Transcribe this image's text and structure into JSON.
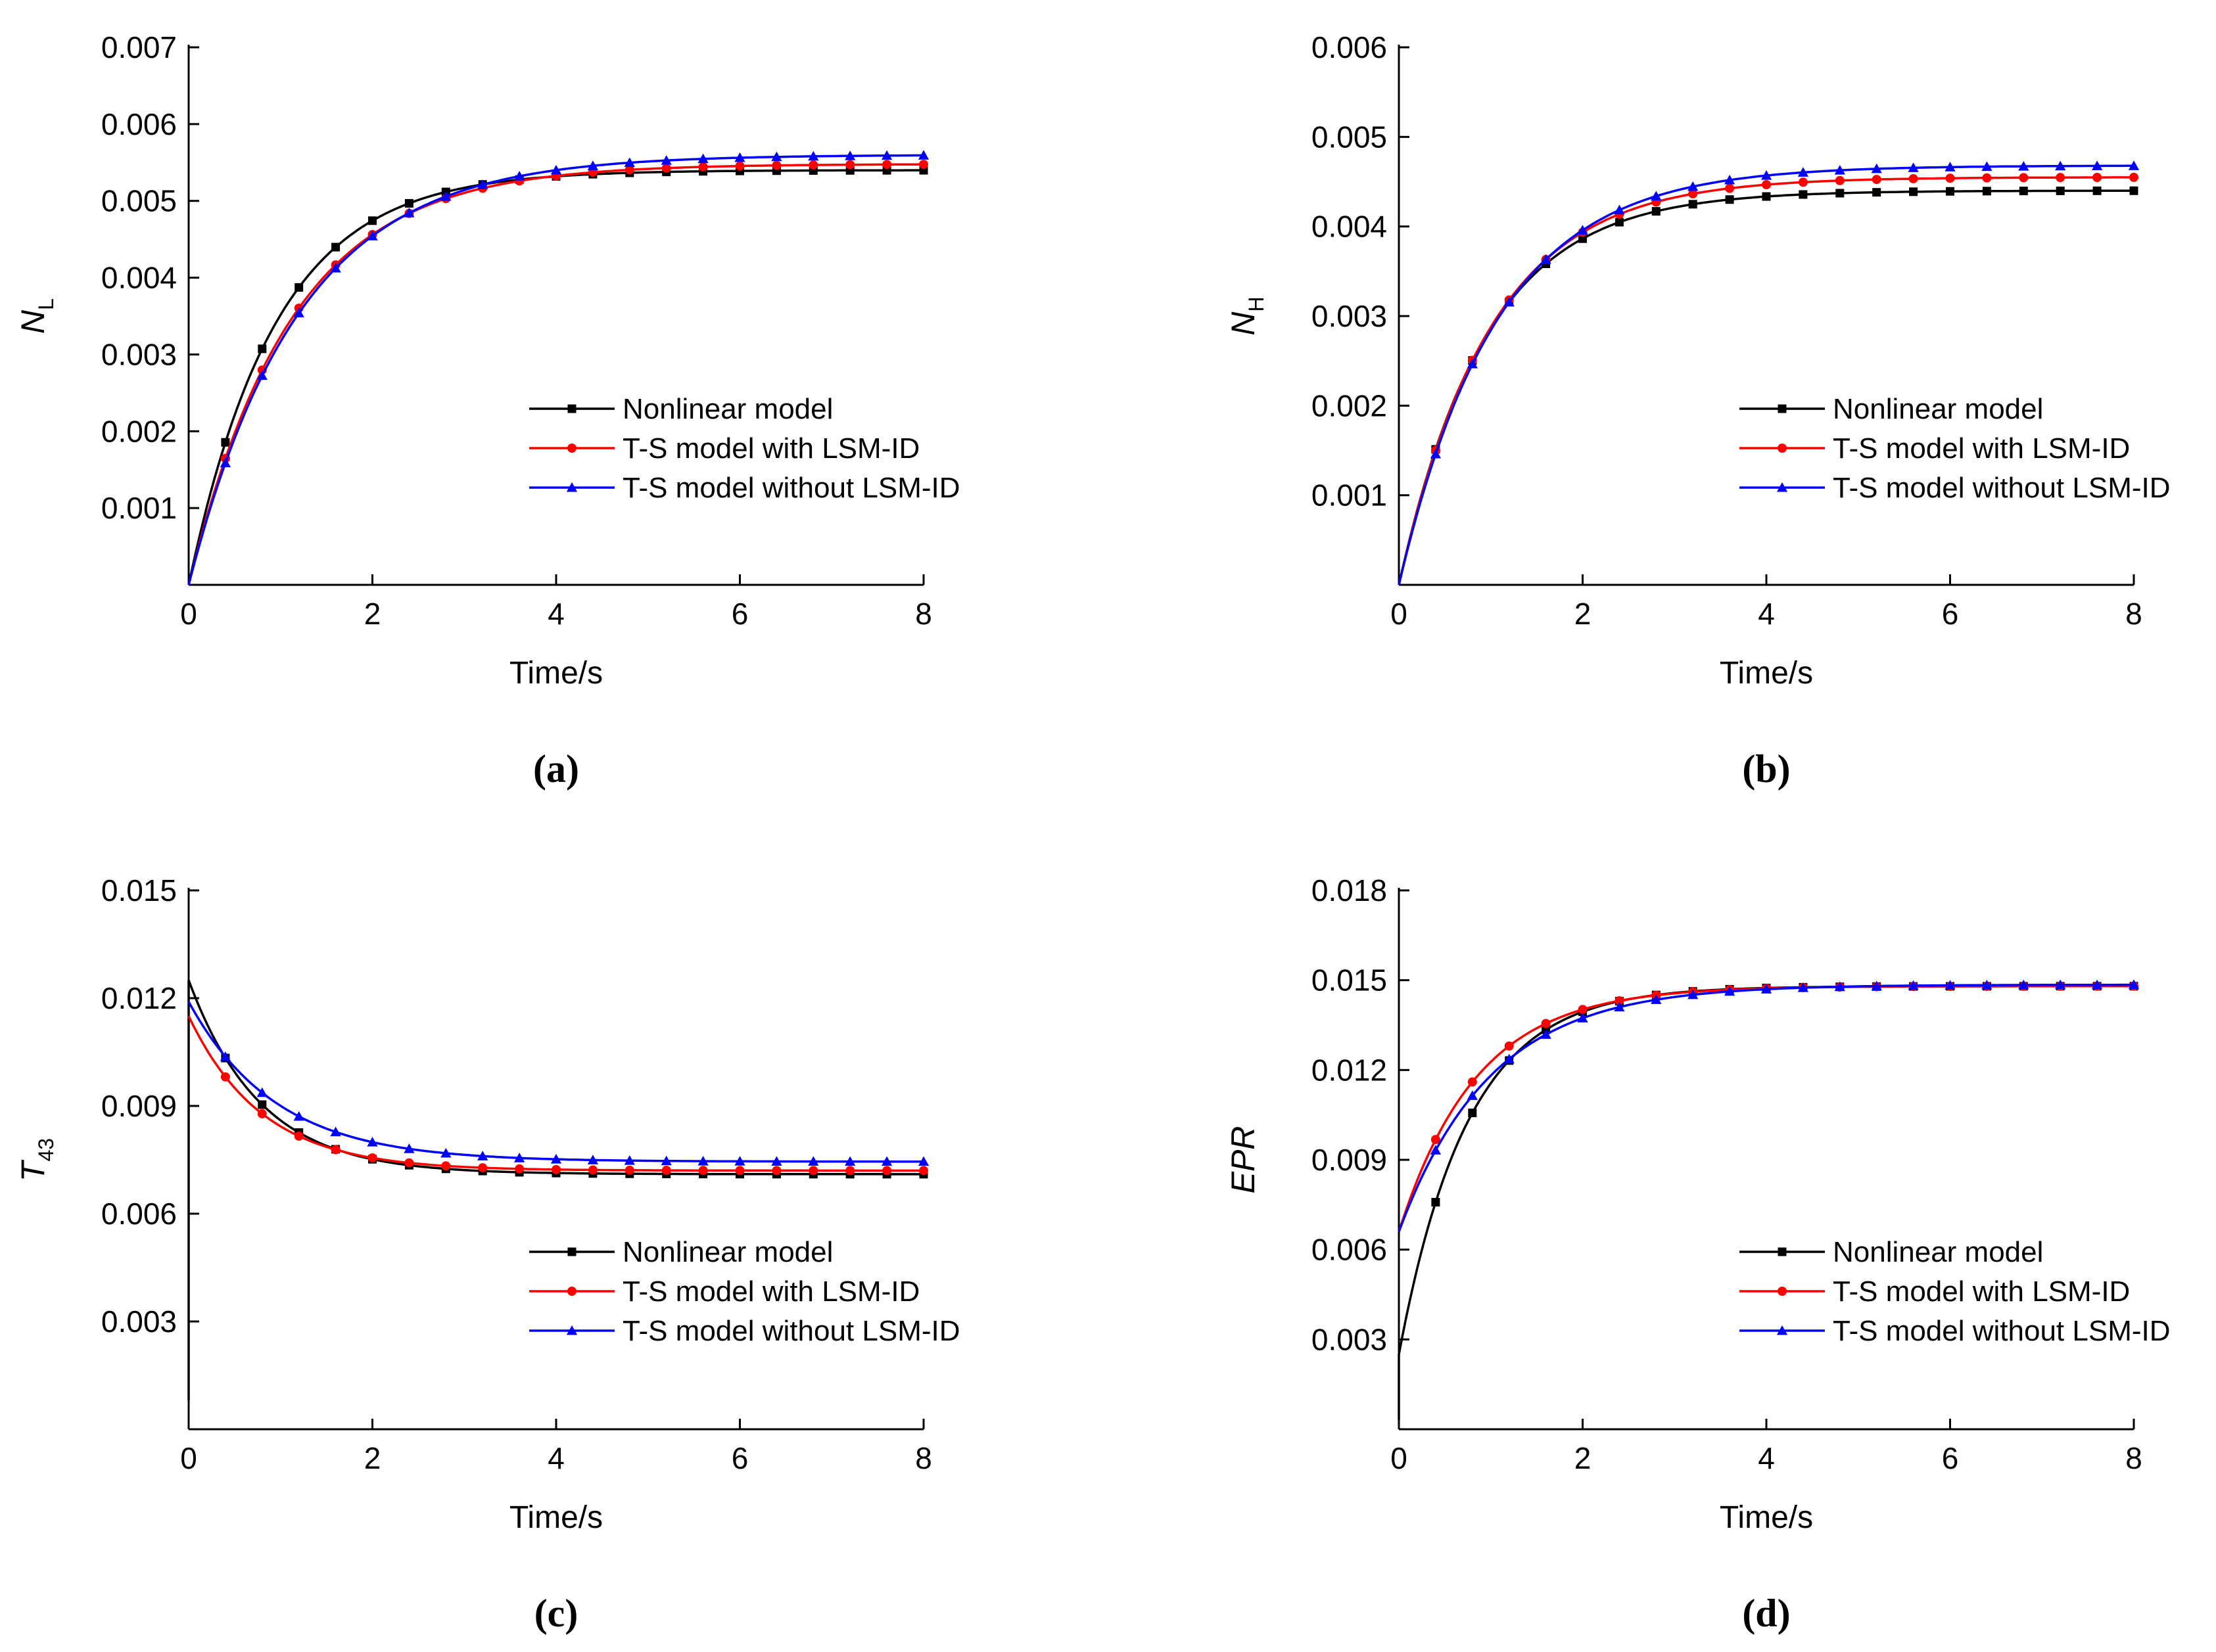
{
  "colors": {
    "nonlinear": "#000000",
    "with_lsm": "#ff0000",
    "without_lsm": "#0000ff"
  },
  "chart_data": [
    {
      "id": "a",
      "type": "line",
      "panel_label": "(a)",
      "ylabel_main": "N",
      "ylabel_sub": "L",
      "ylabel_italic": true,
      "xlabel": "Time/s",
      "xlim": [
        0,
        8
      ],
      "ylim": [
        0,
        0.007
      ],
      "xticks": [
        0,
        2,
        4,
        6,
        8
      ],
      "xtick_labels": [
        "0",
        "2",
        "4",
        "6",
        "8"
      ],
      "yticks": [
        0.001,
        0.002,
        0.003,
        0.004,
        0.005,
        0.006,
        0.007
      ],
      "ytick_labels": [
        "0.001",
        "0.002",
        "0.003",
        "0.004",
        "0.005",
        "0.006",
        "0.007"
      ],
      "legend": [
        "Nonlinear model",
        "T-S model with LSM-ID",
        "T-S model without LSM-ID"
      ],
      "legend_position": "right-middle",
      "series": [
        {
          "name": "Nonlinear model",
          "marker": "square",
          "model": {
            "kind": "exp",
            "y0": 0,
            "yinf": 0.0054,
            "tau": 0.95,
            "overshoot": 0
          }
        },
        {
          "name": "T-S model with LSM-ID",
          "marker": "circle",
          "model": {
            "kind": "exp",
            "y0": 0,
            "yinf": 0.00548,
            "tau": 1.12,
            "overshoot": 0
          }
        },
        {
          "name": "T-S model without LSM-ID",
          "marker": "triangle",
          "model": {
            "kind": "exp",
            "y0": 0,
            "yinf": 0.0056,
            "tau": 1.2,
            "overshoot": 0
          }
        }
      ]
    },
    {
      "id": "b",
      "type": "line",
      "panel_label": "(b)",
      "ylabel_main": "N",
      "ylabel_sub": "H",
      "ylabel_italic": true,
      "xlabel": "Time/s",
      "xlim": [
        0,
        8
      ],
      "ylim": [
        0,
        0.006
      ],
      "xticks": [
        0,
        2,
        4,
        6,
        8
      ],
      "xtick_labels": [
        "0",
        "2",
        "4",
        "6",
        "8"
      ],
      "yticks": [
        0.001,
        0.002,
        0.003,
        0.004,
        0.005,
        0.006
      ],
      "ytick_labels": [
        "0.001",
        "0.002",
        "0.003",
        "0.004",
        "0.005",
        "0.006"
      ],
      "legend": [
        "Nonlinear model",
        "T-S model with LSM-ID",
        "T-S model without LSM-ID"
      ],
      "legend_position": "right-middle",
      "series": [
        {
          "name": "Nonlinear model",
          "marker": "square",
          "model": {
            "kind": "exp",
            "y0": 0,
            "yinf": 0.0044,
            "tau": 0.95,
            "overshoot": 0
          }
        },
        {
          "name": "T-S model with LSM-ID",
          "marker": "circle",
          "model": {
            "kind": "exp",
            "y0": 0,
            "yinf": 0.00455,
            "tau": 1.0,
            "overshoot": 0
          }
        },
        {
          "name": "T-S model without LSM-ID",
          "marker": "triangle",
          "model": {
            "kind": "exp",
            "y0": 0,
            "yinf": 0.00468,
            "tau": 1.07,
            "overshoot": 0
          }
        }
      ]
    },
    {
      "id": "c",
      "type": "line",
      "panel_label": "(c)",
      "ylabel_main": "T",
      "ylabel_sub": "43",
      "ylabel_italic": true,
      "xlabel": "Time/s",
      "xlim": [
        0,
        8
      ],
      "ylim": [
        0,
        0.015
      ],
      "xticks": [
        0,
        2,
        4,
        6,
        8
      ],
      "xtick_labels": [
        "0",
        "2",
        "4",
        "6",
        "8"
      ],
      "yticks": [
        0.003,
        0.006,
        0.009,
        0.012,
        0.015
      ],
      "ytick_labels": [
        "0.003",
        "0.006",
        "0.009",
        "0.012",
        "0.015"
      ],
      "legend": [
        "Nonlinear model",
        "T-S model with LSM-ID",
        "T-S model without LSM-ID"
      ],
      "legend_position": "right-middle",
      "series": [
        {
          "name": "Nonlinear model",
          "marker": "square",
          "model": {
            "kind": "exp",
            "y0": 0.0125,
            "yinf": 0.0071,
            "tau": 0.78,
            "overshoot": 0
          },
          "prefix": [
            [
              0,
              0.0008
            ],
            [
              0,
              0.0125
            ]
          ]
        },
        {
          "name": "T-S model with LSM-ID",
          "marker": "circle",
          "model": {
            "kind": "exp",
            "y0": 0.0115,
            "yinf": 0.0072,
            "tau": 0.8,
            "overshoot": 0
          }
        },
        {
          "name": "T-S model without LSM-ID",
          "marker": "triangle",
          "model": {
            "kind": "exp",
            "y0": 0.0119,
            "yinf": 0.00745,
            "tau": 0.95,
            "overshoot": 0
          }
        }
      ]
    },
    {
      "id": "d",
      "type": "line",
      "panel_label": "(d)",
      "ylabel_main": "EPR",
      "ylabel_sub": "",
      "ylabel_italic": true,
      "xlabel": "Time/s",
      "xlim": [
        0,
        8
      ],
      "ylim": [
        0,
        0.018
      ],
      "xticks": [
        0,
        2,
        4,
        6,
        8
      ],
      "xtick_labels": [
        "0",
        "2",
        "4",
        "6",
        "8"
      ],
      "yticks": [
        0.003,
        0.006,
        0.009,
        0.012,
        0.015,
        0.018
      ],
      "ytick_labels": [
        "0.003",
        "0.006",
        "0.009",
        "0.012",
        "0.015",
        "0.018"
      ],
      "legend": [
        "Nonlinear model",
        "T-S model with LSM-ID",
        "T-S model without LSM-ID"
      ],
      "legend_position": "right-middle",
      "series": [
        {
          "name": "Nonlinear model",
          "marker": "square",
          "model": {
            "kind": "exp",
            "y0": 0.0025,
            "yinf": 0.0148,
            "tau": 0.75,
            "overshoot": 0
          },
          "prefix": [
            [
              0,
              0.0003
            ]
          ]
        },
        {
          "name": "T-S model with LSM-ID",
          "marker": "circle",
          "model": {
            "kind": "exp",
            "y0": 0.0066,
            "yinf": 0.0148,
            "tau": 0.85,
            "overshoot": 0
          }
        },
        {
          "name": "T-S model without LSM-ID",
          "marker": "triangle",
          "model": {
            "kind": "exp",
            "y0": 0.0066,
            "yinf": 0.01485,
            "tau": 1.0,
            "overshoot": 0
          }
        }
      ]
    }
  ]
}
